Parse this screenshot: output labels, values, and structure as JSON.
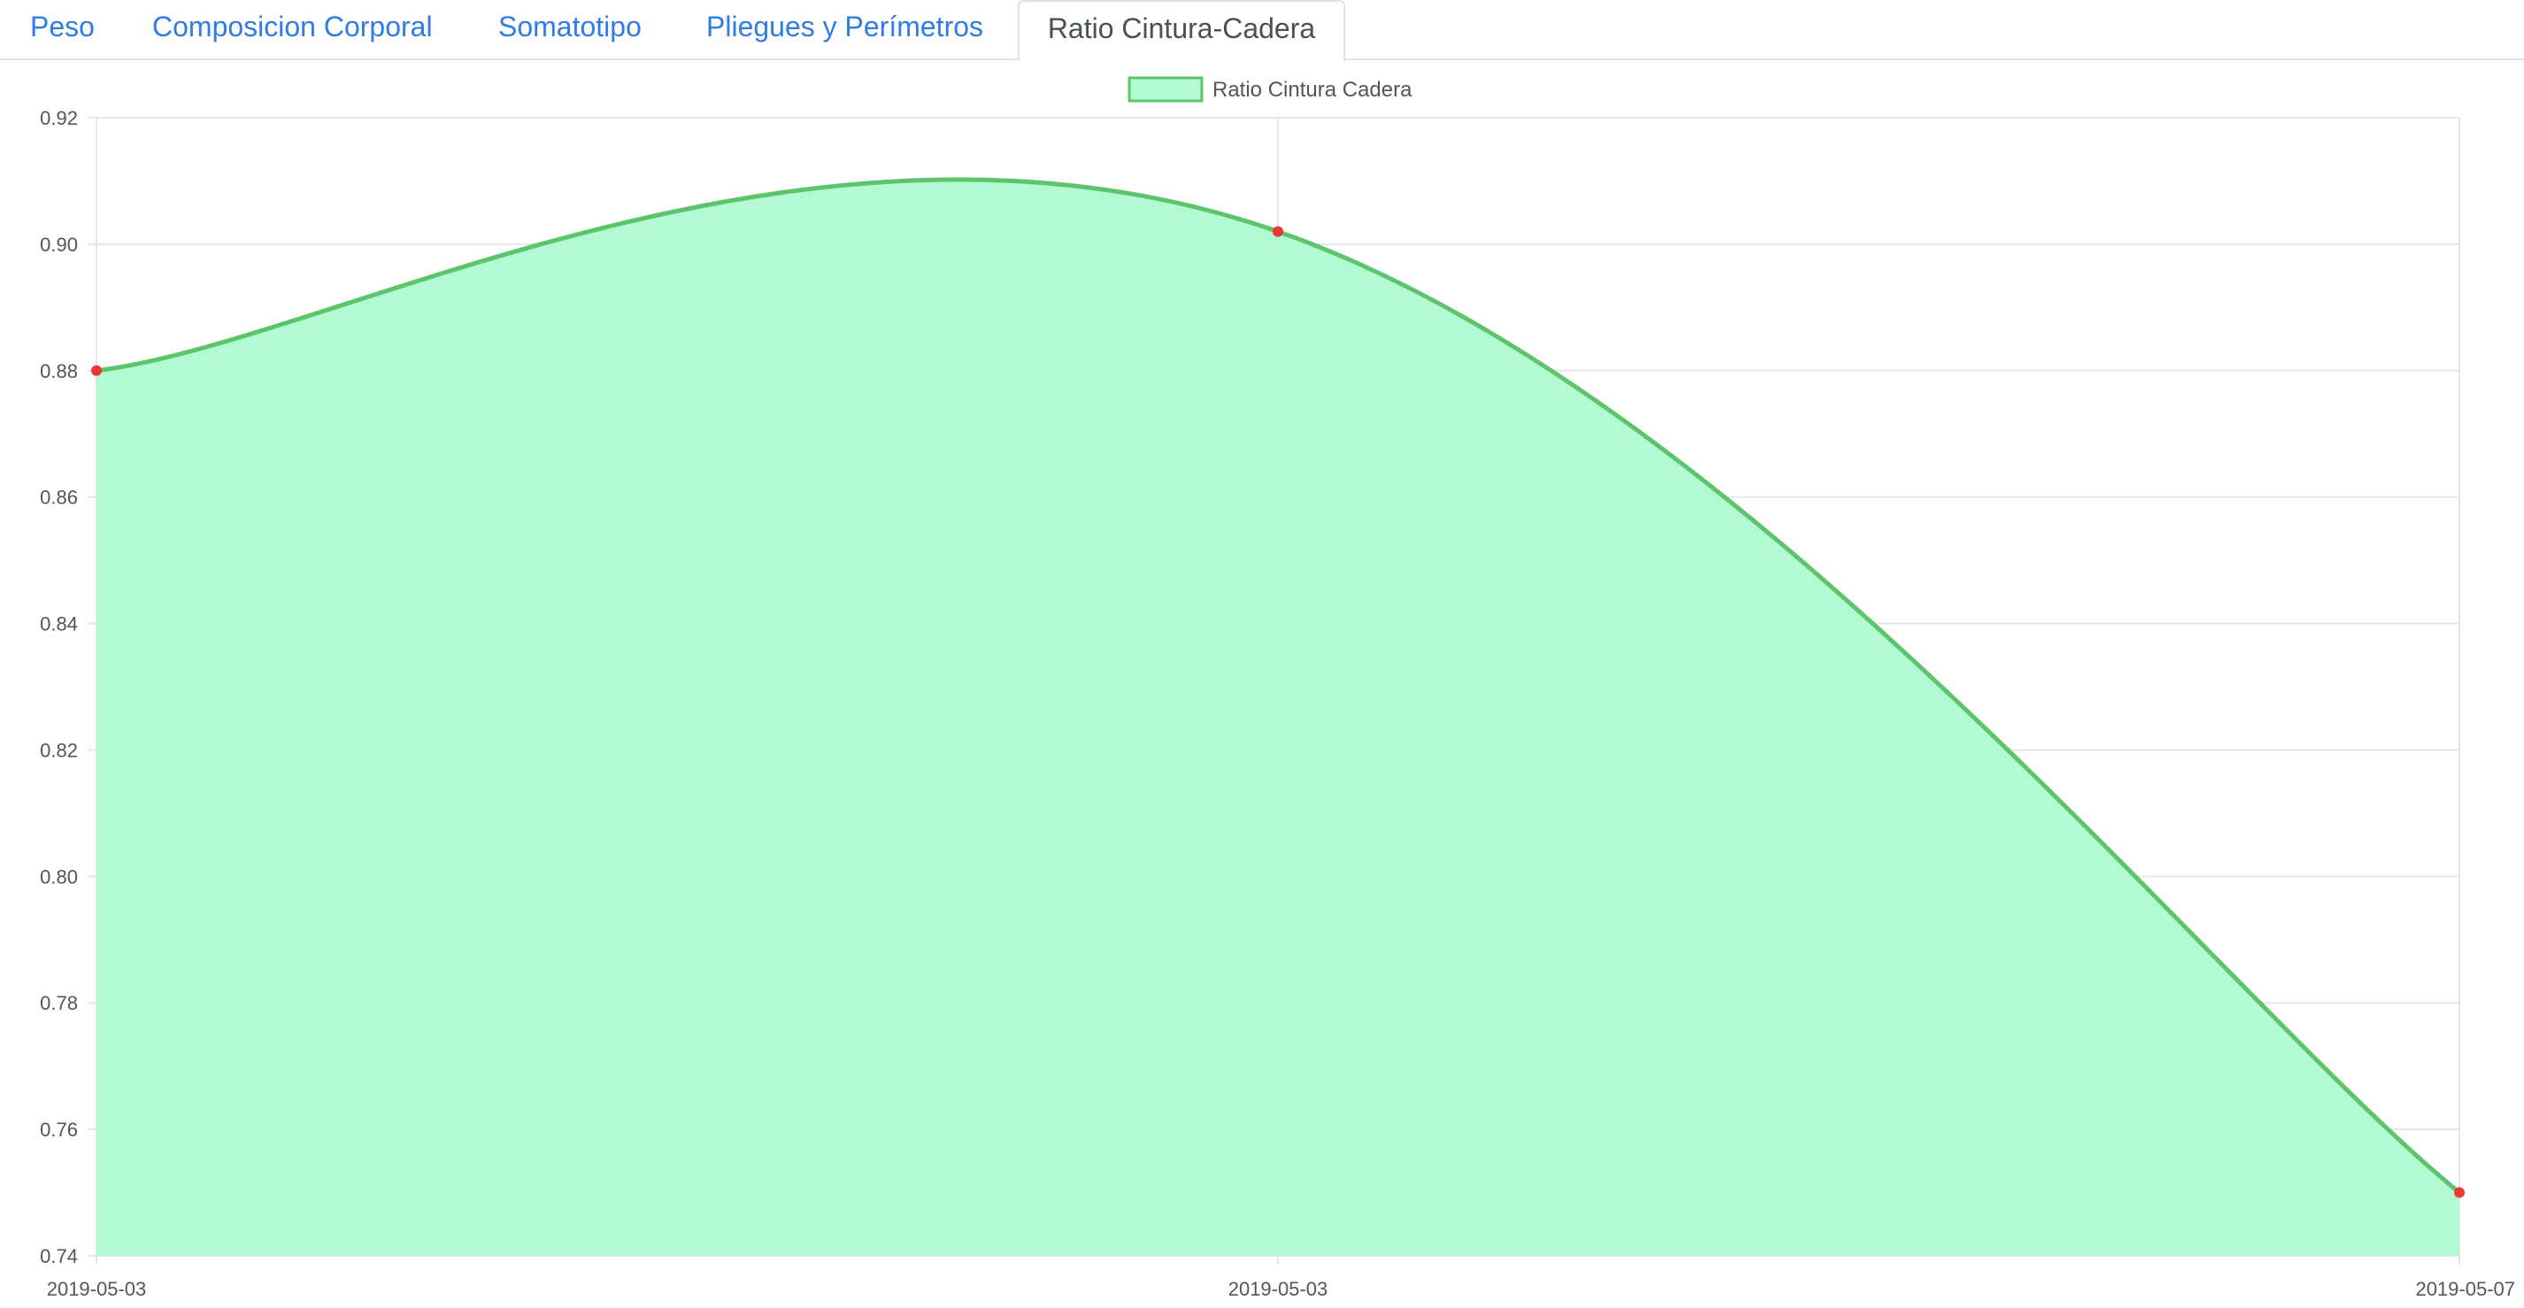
{
  "tabs": [
    {
      "label": "Peso",
      "active": false
    },
    {
      "label": "Composicion Corporal",
      "active": false
    },
    {
      "label": "Somatotipo",
      "active": false
    },
    {
      "label": "Pliegues y Perímetros",
      "active": false
    },
    {
      "label": "Ratio Cintura-Cadera",
      "active": true
    }
  ],
  "colors": {
    "link": "#2f7ce6",
    "active_tab_text": "#495057",
    "line": "#5cc46a",
    "fill": "#b3f9d2",
    "point": "#e8382f",
    "grid": "#e5e5e5",
    "axis_text": "#555555"
  },
  "chart_data": {
    "type": "area",
    "x": [
      "2019-05-03",
      "2019-05-03",
      "2019-05-07"
    ],
    "series": [
      {
        "name": "Ratio Cintura Cadera",
        "values": [
          0.88,
          0.902,
          0.75
        ]
      }
    ],
    "yticks": [
      "0.74",
      "0.76",
      "0.78",
      "0.80",
      "0.82",
      "0.84",
      "0.86",
      "0.88",
      "0.90",
      "0.92"
    ],
    "ylim": [
      0.74,
      0.92
    ],
    "grid": true,
    "legend_position": "top-center",
    "title": "",
    "xlabel": "",
    "ylabel": ""
  }
}
